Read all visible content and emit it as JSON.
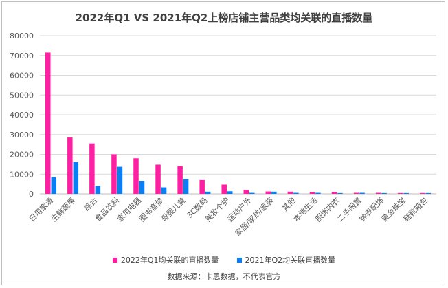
{
  "chart_data": {
    "type": "bar",
    "title": "2022年Q1 VS 2021年Q2上榜店铺主营品类均关联的直播数量",
    "categories": [
      "日用家清",
      "生鲜蔬果",
      "综合",
      "食品饮料",
      "家用电器",
      "图书音像",
      "母婴儿童",
      "3C数码",
      "美妆个护",
      "运动户外",
      "家居/家纺/家装",
      "其他",
      "本地生活",
      "服饰内衣",
      "二手闲置",
      "钟表配饰",
      "黄金珠宝",
      "鞋靴箱包"
    ],
    "series": [
      {
        "name": "2022年Q1均关联的直播数量",
        "color": "#ff1fa3",
        "values": [
          71500,
          28500,
          25500,
          20000,
          18000,
          14800,
          14000,
          7000,
          4700,
          2000,
          1200,
          1100,
          800,
          900,
          500,
          500,
          400,
          400
        ]
      },
      {
        "name": "2021年Q2均关联直播数量",
        "color": "#0a7ef2",
        "values": [
          8500,
          16000,
          4000,
          13700,
          6500,
          3300,
          7500,
          1100,
          1300,
          500,
          1100,
          500,
          500,
          400,
          500,
          400,
          400,
          400
        ]
      }
    ],
    "ylim": [
      0,
      80000
    ],
    "yticks": [
      0,
      10000,
      20000,
      30000,
      40000,
      50000,
      60000,
      70000,
      80000
    ],
    "grid": true,
    "legend_position": "bottom"
  },
  "source_note": "数据来源：卡思数据，不代表官方"
}
